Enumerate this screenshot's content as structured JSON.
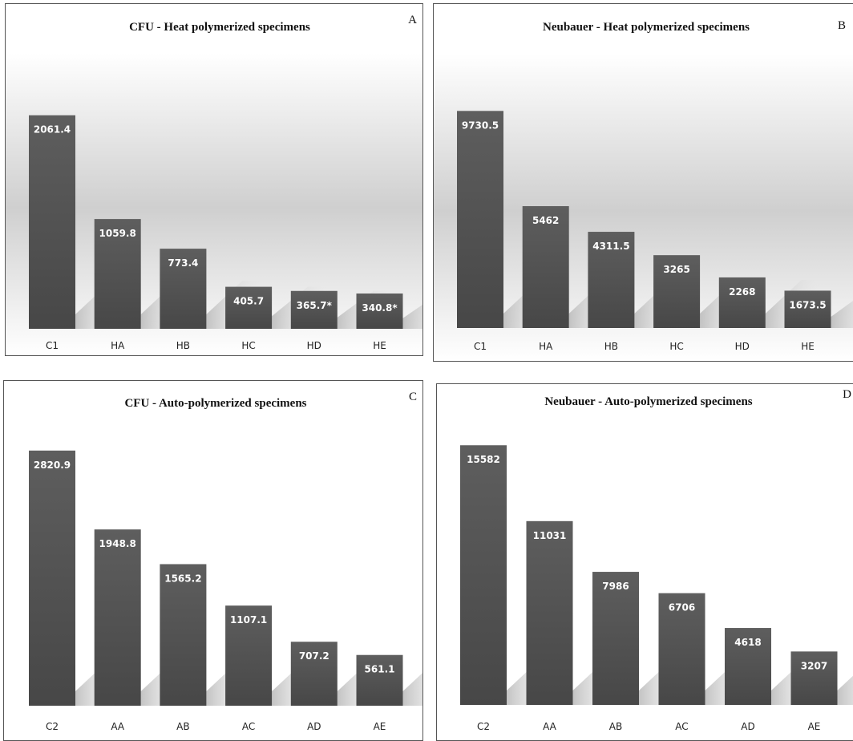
{
  "chart_data": [
    {
      "type": "bar",
      "panel": "A",
      "title": "CFU - Heat polymerized specimens",
      "categories": [
        "C1",
        "HA",
        "HB",
        "HC",
        "HD",
        "HE"
      ],
      "values": [
        2061.4,
        1059.8,
        773.4,
        405.7,
        365.7,
        340.8
      ],
      "value_labels": [
        "2061.4",
        "1059.8",
        "773.4",
        "405.7",
        "365.7*",
        "340.8*"
      ],
      "ylim": [
        0,
        2400
      ],
      "bar_color": "#555555",
      "grid": false
    },
    {
      "type": "bar",
      "panel": "B",
      "title": "Neubauer - Heat polymerized specimens",
      "categories": [
        "C1",
        "HA",
        "HB",
        "HC",
        "HD",
        "HE"
      ],
      "values": [
        9730.5,
        5462,
        4311.5,
        3265,
        2268,
        1673.5
      ],
      "value_labels": [
        "9730.5",
        "5462",
        "4311.5",
        "3265",
        "2268",
        "1673.5"
      ],
      "ylim": [
        0,
        11000
      ],
      "bar_color": "#555555",
      "grid": false
    },
    {
      "type": "bar",
      "panel": "C",
      "title": "CFU - Auto-polymerized specimens",
      "categories": [
        "C2",
        "AA",
        "AB",
        "AC",
        "AD",
        "AE"
      ],
      "values": [
        2820.9,
        1948.8,
        1565.2,
        1107.1,
        707.2,
        561.1
      ],
      "value_labels": [
        "2820.9",
        "1948.8",
        "1565.2",
        "1107.1",
        "707.2",
        "561.1"
      ],
      "ylim": [
        0,
        3050
      ],
      "bar_color": "#555555",
      "grid": false
    },
    {
      "type": "bar",
      "panel": "D",
      "title": "Neubauer - Auto-polymerized specimens",
      "categories": [
        "C2",
        "AA",
        "AB",
        "AC",
        "AD",
        "AE"
      ],
      "values": [
        15582,
        11031,
        7986,
        6706,
        4618,
        3207
      ],
      "value_labels": [
        "15582",
        "11031",
        "7986",
        "6706",
        "4618",
        "3207"
      ],
      "ylim": [
        0,
        18000
      ],
      "bar_color": "#555555",
      "grid": false
    }
  ]
}
